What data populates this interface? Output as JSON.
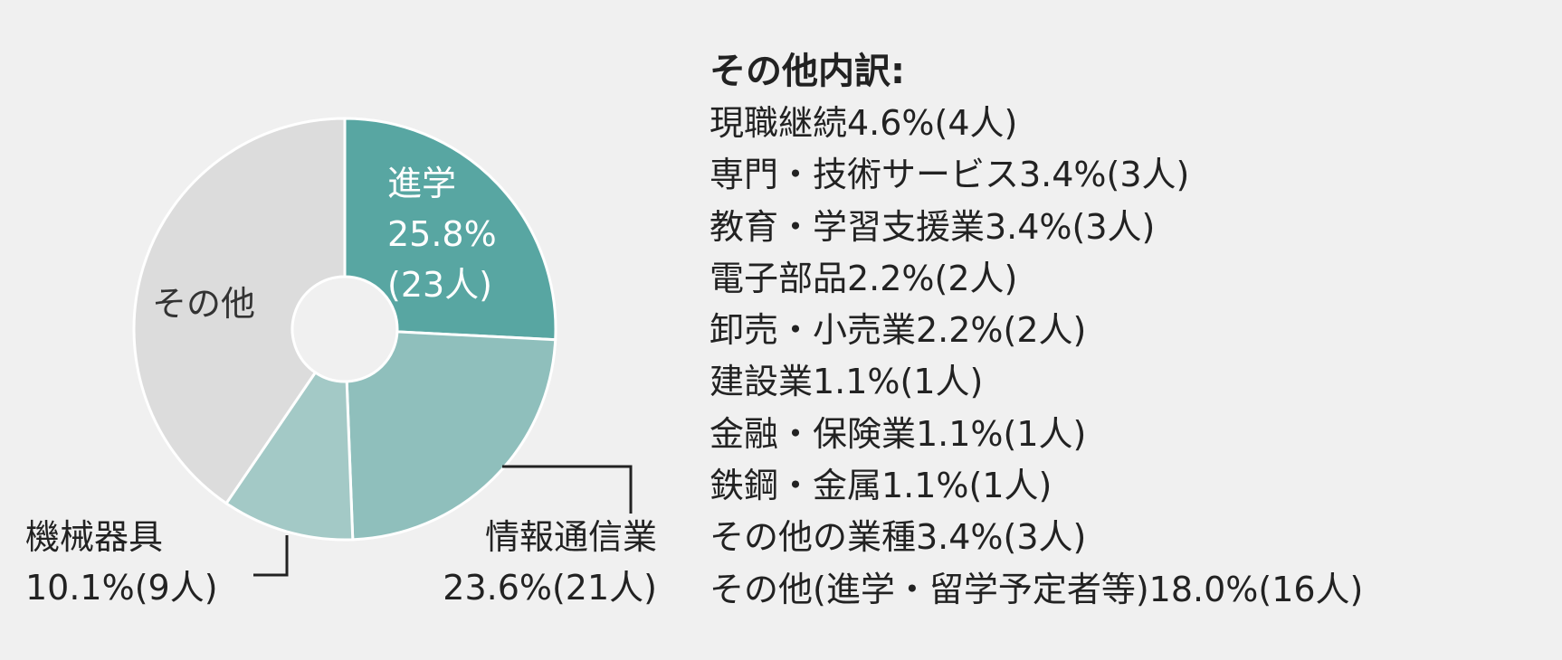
{
  "chart_data": {
    "type": "pie",
    "slices": [
      {
        "key": "shingaku",
        "label": "進学",
        "value": 25.8,
        "display_value": "25.8%",
        "count": "(23人)",
        "color": "#58a6a2"
      },
      {
        "key": "joho",
        "label": "情報通信業",
        "value": 23.6,
        "display_value": "23.6%",
        "count": "(21人)",
        "color": "#8fbfbc"
      },
      {
        "key": "kikai",
        "label": "機械器具",
        "value": 10.1,
        "display_value": "10.1%",
        "count": "(9人)",
        "color": "#a3c9c6"
      },
      {
        "key": "sonota",
        "label": "その他",
        "value": 40.5,
        "color": "#dcdcdc"
      }
    ],
    "labels": {
      "shingaku": {
        "line1": "進学",
        "line2": "25.8%",
        "line3": "(23人)"
      },
      "joho": {
        "line1": "情報通信業",
        "line2": "23.6%(21人)"
      },
      "kikai": {
        "line1": "機械器具",
        "line2": "10.1%(9人)"
      },
      "sonota": {
        "line1": "その他"
      }
    },
    "breakdown": {
      "title": "その他内訳:",
      "items": [
        "現職継続4.6%(4人)",
        "専門・技術サービス3.4%(3人)",
        "教育・学習支援業3.4%(3人)",
        "電子部品2.2%(2人)",
        "卸売・小売業2.2%(2人)",
        "建設業1.1%(1人)",
        "金融・保険業1.1%(1人)",
        "鉄鋼・金属1.1%(1人)",
        "その他の業種3.4%(3人)",
        "その他(進学・留学予定者等)18.0%(16人)"
      ]
    },
    "colors": {
      "background": "#f0f0f0",
      "slice_border": "#ffffff",
      "leader_line": "#222222"
    }
  }
}
